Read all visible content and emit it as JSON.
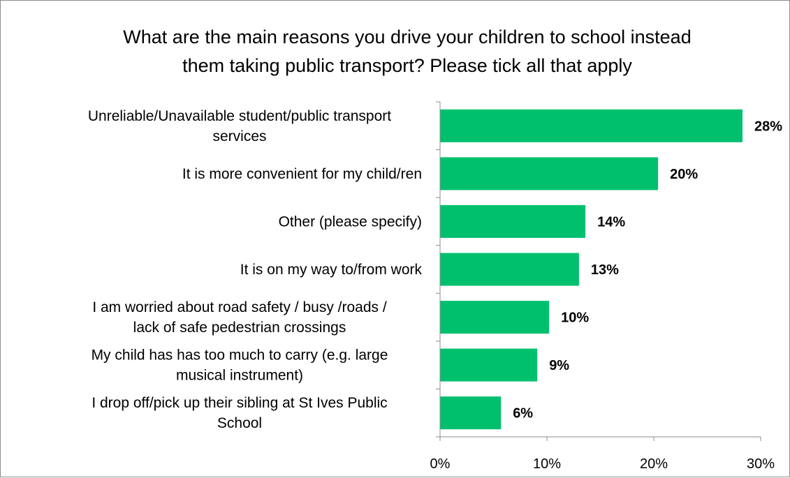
{
  "chart_data": {
    "type": "bar",
    "orientation": "horizontal",
    "title_lines": [
      "What are the main reasons you drive your children to school instead",
      "them taking  public transport? Please tick all that apply"
    ],
    "categories": [
      [
        "Unreliable/Unavailable student/public transport",
        "services"
      ],
      [
        "It is more convenient for my child/ren"
      ],
      [
        "Other (please specify)"
      ],
      [
        "It is on my way to/from work"
      ],
      [
        "I am worried about road safety / busy /roads /",
        "lack of safe pedestrian crossings"
      ],
      [
        "My child has has too much to carry (e.g. large",
        "musical instrument)"
      ],
      [
        "I drop off/pick up their sibling at St Ives Public",
        "School"
      ]
    ],
    "values": [
      28.3,
      20.4,
      13.6,
      13.0,
      10.2,
      9.1,
      5.7
    ],
    "value_labels": [
      "28%",
      "20%",
      "14%",
      "13%",
      "10%",
      "9%",
      "6%"
    ],
    "xlim": [
      0,
      30
    ],
    "x_ticks": [
      0,
      10,
      20,
      30
    ],
    "x_tick_labels": [
      "0%",
      "10%",
      "20%",
      "30%"
    ],
    "bar_color": "#00c06e",
    "axis_color": "#8c8c8c",
    "grid": false,
    "legend": "none"
  }
}
